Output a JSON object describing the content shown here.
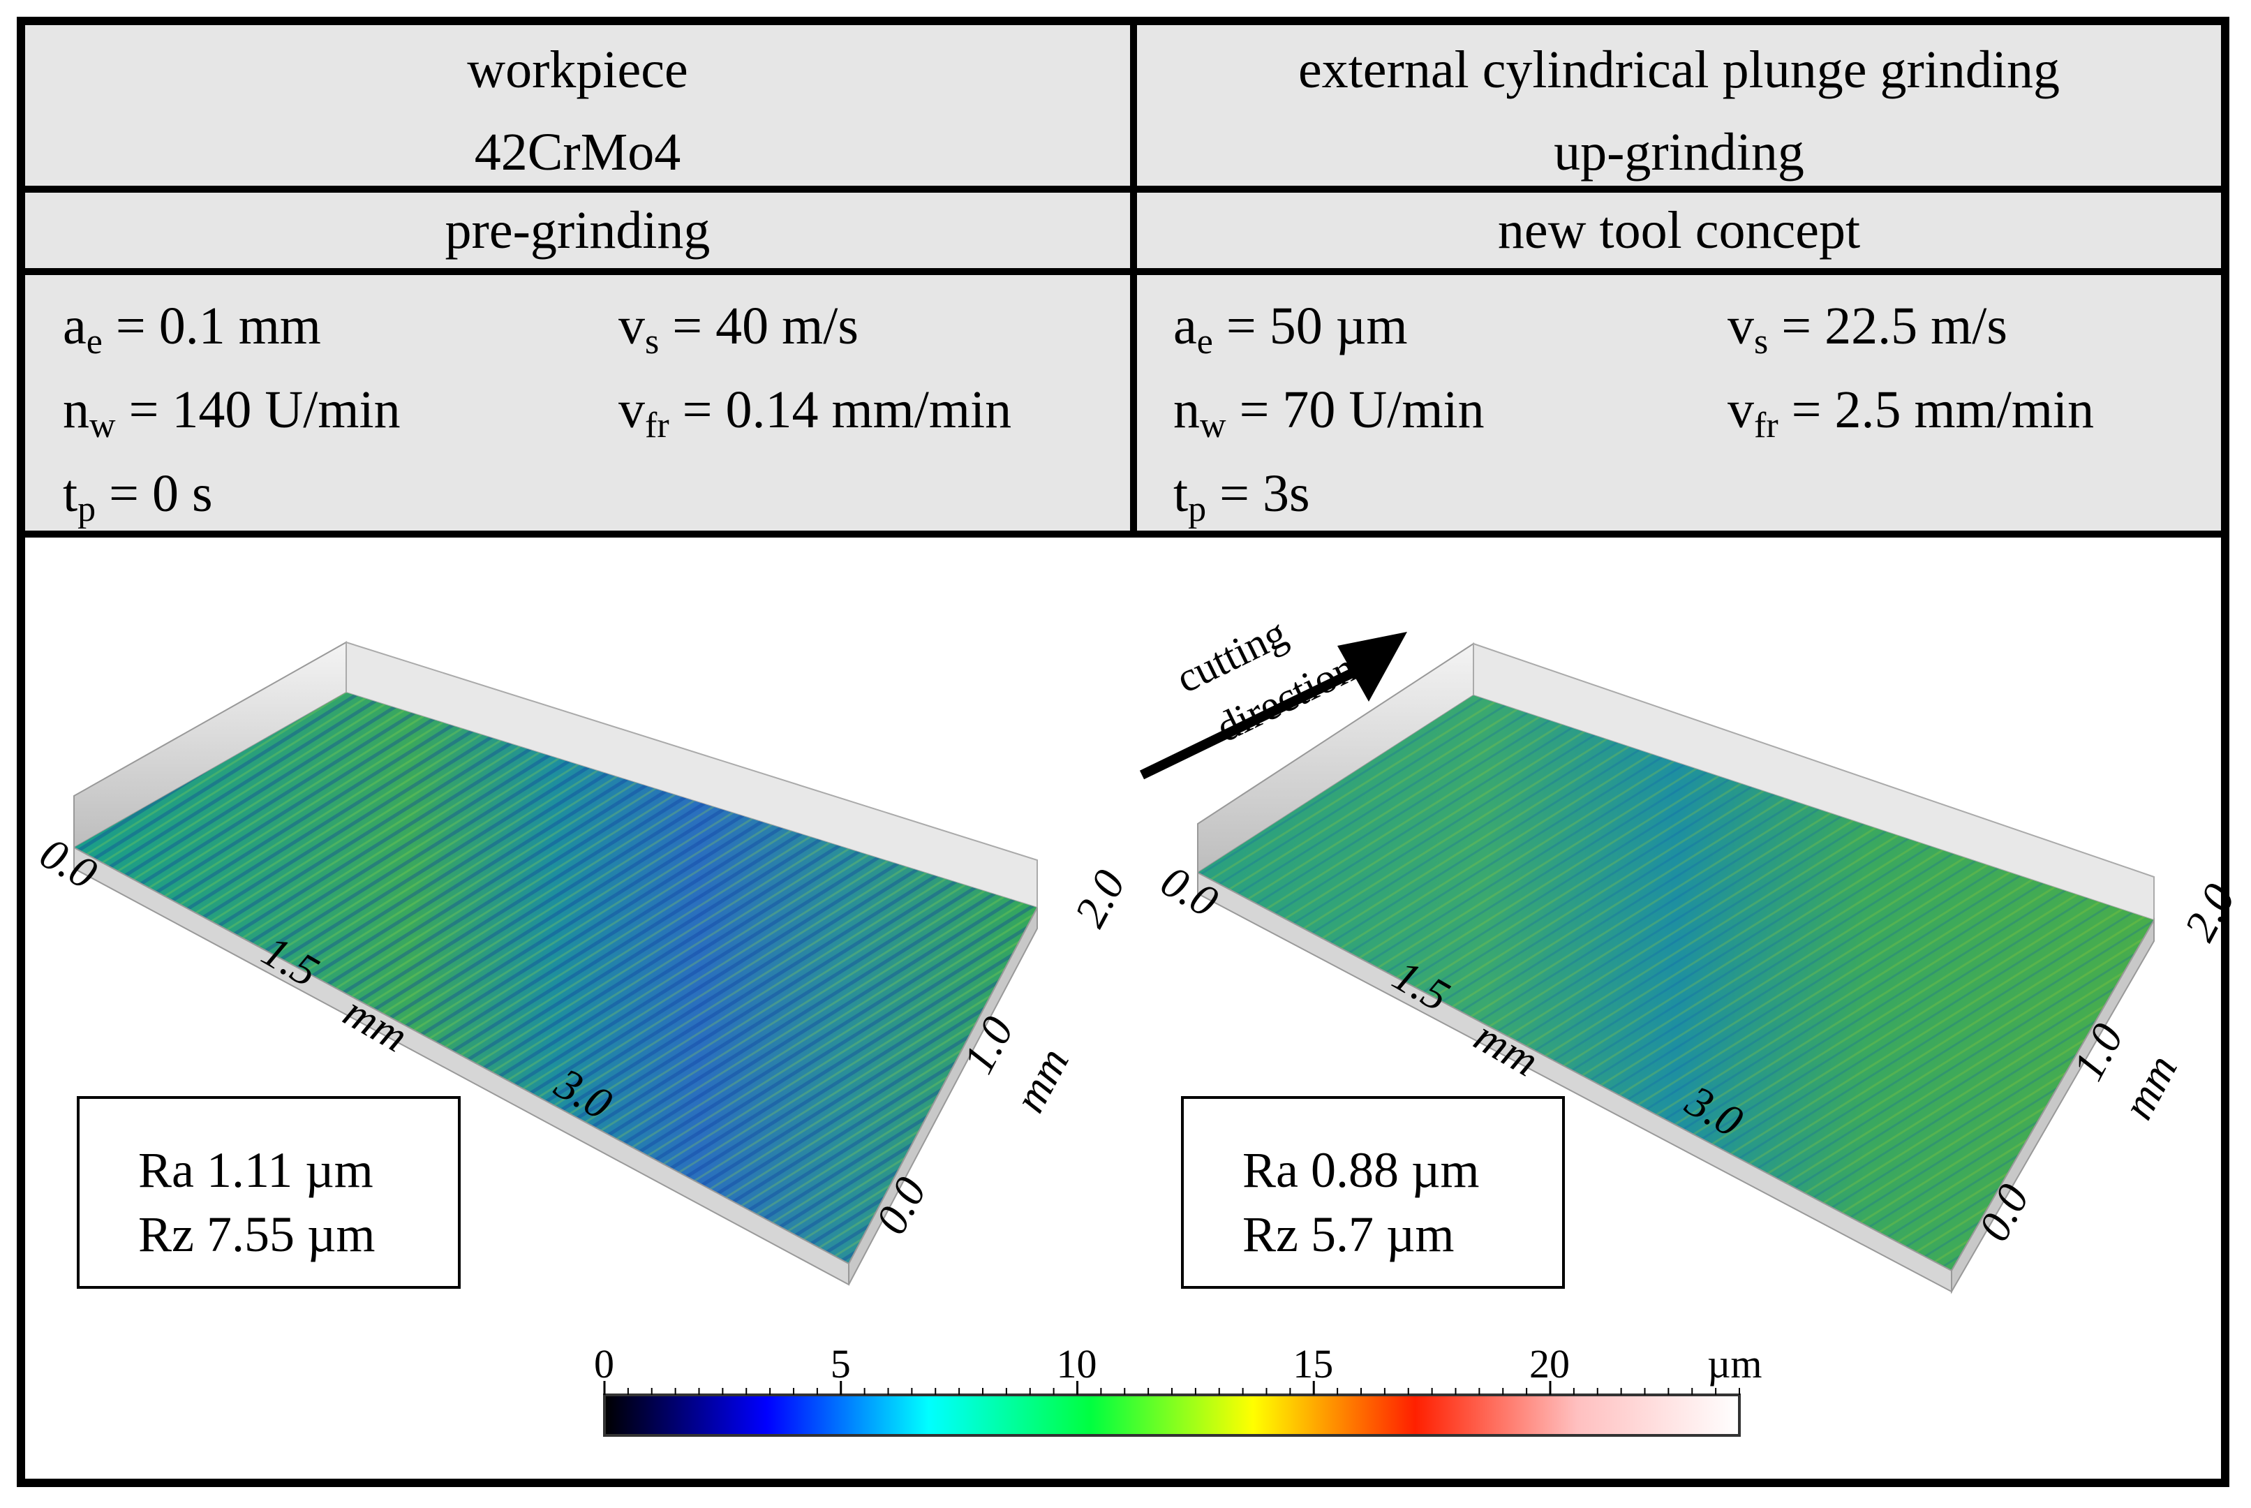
{
  "header": {
    "workpiece_line1": "workpiece",
    "workpiece_line2": "42CrMo4",
    "process_line1": "external cylindrical plunge grinding",
    "process_line2": "up-grinding",
    "left_condition": "pre-grinding",
    "right_condition": "new tool concept"
  },
  "left_params": {
    "ae": {
      "sym": "a",
      "sub": "e",
      "value": " = 0.1 mm"
    },
    "vs": {
      "sym": "v",
      "sub": "s",
      "value": " = 40 m/s"
    },
    "nw": {
      "sym": "n",
      "sub": "w",
      "value": " = 140 U/min"
    },
    "vfr": {
      "sym": "v",
      "sub": "fr",
      "value": " = 0.14 mm/min"
    },
    "tp": {
      "sym": "t",
      "sub": "p",
      "value": " = 0 s"
    }
  },
  "right_params": {
    "ae": {
      "sym": "a",
      "sub": "e",
      "value": " = 50 µm"
    },
    "vs": {
      "sym": "v",
      "sub": "s",
      "value": " = 22.5 m/s"
    },
    "nw": {
      "sym": "n",
      "sub": "w",
      "value": " = 70 U/min"
    },
    "vfr": {
      "sym": "v",
      "sub": "fr",
      "value": " = 2.5 mm/min"
    },
    "tp": {
      "sym": "t",
      "sub": "p",
      "value": " = 3s"
    }
  },
  "surfaces": {
    "axis_ticks_long": [
      "0.0",
      "1.5",
      "3.0"
    ],
    "axis_ticks_short": [
      "2.0",
      "1.0",
      "0.0"
    ],
    "axis_unit": "mm",
    "cutting_direction_line1": "cutting",
    "cutting_direction_line2": "direction",
    "left": {
      "ra": "Ra 1.11 µm",
      "rz": "Rz 7.55 µm"
    },
    "right": {
      "ra": "Ra 0.88 µm",
      "rz": "Rz 5.7 µm"
    }
  },
  "colorbar": {
    "ticks": [
      "0",
      "5",
      "10",
      "15",
      "20"
    ],
    "unit": "µm",
    "min": 0,
    "max": 24,
    "colors": [
      "#000000",
      "#0000ff",
      "#00ffff",
      "#00ff40",
      "#ffff00",
      "#ff2000",
      "#ffc0c0",
      "#ffffff"
    ]
  }
}
